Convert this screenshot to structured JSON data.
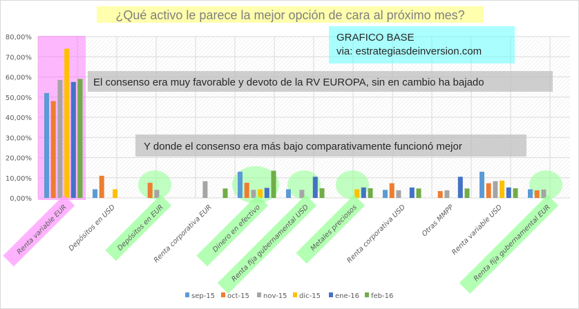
{
  "chart_data": {
    "type": "bar",
    "title": "¿Qué activo le parece la mejor opción de cara al próximo mes?",
    "xlabel": "",
    "ylabel": "",
    "ylim": [
      0,
      80
    ],
    "yticks": [
      "0,00%",
      "10,00%",
      "20,00%",
      "30,00%",
      "40,00%",
      "50,00%",
      "60,00%",
      "70,00%",
      "80,00%"
    ],
    "grid": true,
    "legend_position": "bottom",
    "categories": [
      "Renta variable EUR",
      "Depósitos en USD",
      "Depósitos en EUR",
      "Renta corporativa EUR",
      "Dinero en efectivo",
      "Renta fija gubernamental USD",
      "Metales preciosos",
      "Renta corporativa USD",
      "Otras MMPP",
      "Renta variable USD",
      "Renta fija gubernamental EUR"
    ],
    "category_highlight": [
      "#ff99ff",
      null,
      "#99ff99",
      null,
      "#99ff99",
      "#99ff99",
      "#99ff99",
      null,
      null,
      null,
      "#99ff99"
    ],
    "series": [
      {
        "name": "sep-15",
        "color": "#5b9bd5",
        "values": [
          52,
          4.3,
          0,
          0,
          13,
          4.3,
          0,
          4,
          0,
          13,
          4.3
        ]
      },
      {
        "name": "oct-15",
        "color": "#ed7d31",
        "values": [
          48,
          11,
          7.5,
          0,
          7.5,
          0,
          0,
          7.3,
          3.4,
          7.3,
          3.8
        ]
      },
      {
        "name": "nov-15",
        "color": "#a5a5a5",
        "values": [
          58.5,
          0,
          4,
          8.3,
          4,
          4,
          0,
          3.8,
          3.8,
          8.3,
          4.2
        ]
      },
      {
        "name": "dic-15",
        "color": "#ffc000",
        "values": [
          74,
          4.3,
          0,
          0,
          4.3,
          0,
          4.3,
          0,
          0,
          8.6,
          0
        ]
      },
      {
        "name": "ene-16",
        "color": "#4472c4",
        "values": [
          57.5,
          0,
          0,
          0,
          5,
          10.5,
          5.2,
          5.2,
          10.5,
          5.2,
          0
        ]
      },
      {
        "name": "feb-16",
        "color": "#70ad47",
        "values": [
          59,
          0,
          0,
          4.7,
          13.5,
          4.8,
          4.8,
          4.7,
          4.7,
          4.8,
          0
        ]
      }
    ],
    "annotations": {
      "base_line1": "GRAFICO BASE",
      "base_line2": "via: estrategiasdeinversion.com",
      "note1": "El consenso era muy favorable y devoto de la RV EUROPA, sin en cambio ha bajado",
      "note2": "Y donde el consenso era más bajo comparativamente funcionó mejor"
    }
  }
}
